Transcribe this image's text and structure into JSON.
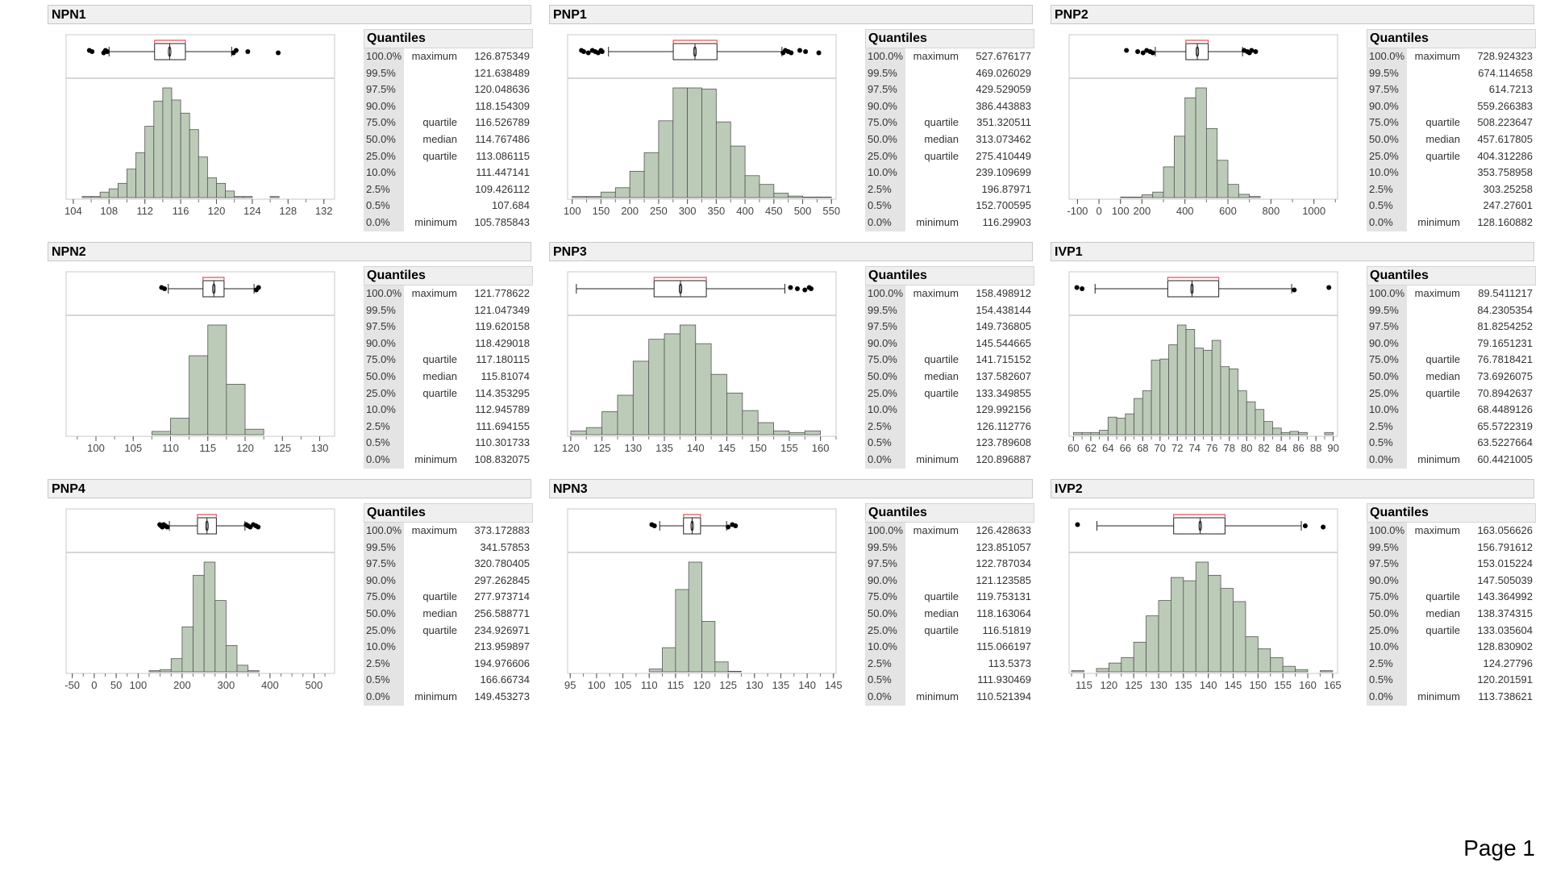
{
  "page_label": "Page 1",
  "quantiles_title": "Quantiles",
  "quantile_levels": [
    "100.0%",
    "99.5%",
    "97.5%",
    "90.0%",
    "75.0%",
    "50.0%",
    "25.0%",
    "10.0%",
    "2.5%",
    "0.5%",
    "0.0%"
  ],
  "quantile_labels": [
    "maximum",
    "",
    "",
    "",
    "quartile",
    "median",
    "quartile",
    "",
    "",
    "",
    "minimum"
  ],
  "colors": {
    "bar_fill": "#bccbb8",
    "bar_stroke": "#555555",
    "bracket": "#e8505b",
    "frame": "#c8c8c8"
  },
  "chart_data": [
    {
      "type": "bar",
      "title": "NPN1",
      "xlim": [
        103.2,
        133.2
      ],
      "ticks": [
        104,
        108,
        112,
        116,
        120,
        124,
        128,
        132
      ],
      "minor_tick_step": 2,
      "hist": {
        "bin_start": 105,
        "bin_width": 1,
        "heights": [
          1,
          1,
          5,
          8,
          13,
          26,
          41,
          65,
          88,
          100,
          89,
          77,
          62,
          37,
          18,
          13,
          6,
          1,
          1,
          0,
          0,
          1
        ]
      },
      "box": {
        "whisker_low": 108,
        "whisker_high": 121.7,
        "outliers": [
          105.8,
          106.1,
          107.4,
          107.6,
          107.8,
          121.9,
          122.2,
          123.5,
          126.9
        ]
      },
      "quantiles": [
        "126.875349",
        "121.638489",
        "120.048636",
        "118.154309",
        "116.526789",
        "114.767486",
        "113.086115",
        "111.447141",
        "109.426112",
        "107.684",
        "105.785843"
      ]
    },
    {
      "type": "bar",
      "title": "PNP1",
      "xlim": [
        92,
        558
      ],
      "ticks": [
        100,
        150,
        200,
        250,
        300,
        350,
        400,
        450,
        500,
        550
      ],
      "minor_tick_step": 25,
      "hist": {
        "bin_start": 100,
        "bin_width": 25,
        "heights": [
          1,
          1,
          5,
          9,
          24,
          41,
          70,
          100,
          100,
          99,
          69,
          47,
          20,
          12,
          4,
          1.4,
          0.5,
          0.5
        ]
      },
      "box": {
        "whisker_low": 163,
        "whisker_high": 464,
        "outliers": [
          116,
          120,
          128,
          135,
          140,
          145,
          150,
          152,
          466,
          470,
          475,
          480,
          495,
          505,
          528
        ]
      },
      "quantiles": [
        "527.676177",
        "469.026029",
        "429.529059",
        "386.443883",
        "351.320511",
        "313.073462",
        "275.410449",
        "239.109699",
        "196.87971",
        "152.700595",
        "116.29903"
      ]
    },
    {
      "type": "bar",
      "title": "PNP2",
      "xlim": [
        -139,
        1110
      ],
      "ticks": [
        -100,
        0,
        100,
        200,
        400,
        600,
        800,
        1000
      ],
      "minor_tick_step": 100,
      "hist": {
        "bin_start": 100,
        "bin_width": 50,
        "heights": [
          0.5,
          0.5,
          2.5,
          5,
          28,
          56,
          91,
          100,
          63,
          34,
          12,
          3,
          1
        ]
      },
      "box": {
        "whisker_low": 262,
        "whisker_high": 668,
        "outliers": [
          128,
          180,
          205,
          222,
          238,
          250,
          675,
          690,
          700,
          710,
          729
        ]
      },
      "quantiles": [
        "728.924323",
        "674.114658",
        "614.7213",
        "559.266383",
        "508.223647",
        "457.617805",
        "404.312286",
        "353.758958",
        "303.25258",
        "247.27601",
        "128.160882"
      ]
    },
    {
      "type": "bar",
      "title": "NPN2",
      "xlim": [
        96,
        132
      ],
      "ticks": [
        100,
        105,
        110,
        115,
        120,
        125,
        130
      ],
      "minor_tick_step": 2.5,
      "hist": {
        "bin_start": 107.5,
        "bin_width": 2.5,
        "heights": [
          3,
          15,
          72,
          100,
          46,
          5
        ]
      },
      "box": {
        "whisker_low": 109.7,
        "whisker_high": 121.2,
        "outliers": [
          108.8,
          109.2,
          121.5,
          121.8
        ]
      },
      "quantiles": [
        "121.778622",
        "121.047349",
        "119.620158",
        "118.429018",
        "117.180115",
        "115.81074",
        "114.353295",
        "112.945789",
        "111.694155",
        "110.301733",
        "108.832075"
      ]
    },
    {
      "type": "bar",
      "title": "PNP3",
      "xlim": [
        119.5,
        162.5
      ],
      "ticks": [
        120,
        125,
        130,
        135,
        140,
        145,
        150,
        155,
        160
      ],
      "minor_tick_step": 2.5,
      "hist": {
        "bin_start": 120,
        "bin_width": 2.5,
        "heights": [
          3.5,
          6.5,
          21,
          36,
          67,
          87,
          92,
          100,
          83,
          55,
          38,
          22,
          11,
          3.5,
          2,
          3.5
        ]
      },
      "box": {
        "whisker_low": 120.9,
        "whisker_high": 154.3,
        "outliers": [
          155.2,
          156.3,
          157.5,
          158.2,
          158.5
        ]
      },
      "quantiles": [
        "158.498912",
        "154.438144",
        "149.736805",
        "145.544665",
        "141.715152",
        "137.582607",
        "133.349855",
        "129.992156",
        "126.112776",
        "123.789608",
        "120.896887"
      ]
    },
    {
      "type": "bar",
      "title": "IVP1",
      "xlim": [
        59.5,
        90.5
      ],
      "ticks": [
        60,
        62,
        64,
        66,
        68,
        70,
        72,
        74,
        76,
        78,
        80,
        82,
        84,
        86,
        88,
        90
      ],
      "minor_tick_step": 1,
      "hist": {
        "bin_start": 60,
        "bin_width": 1,
        "heights": [
          2,
          2,
          2,
          4,
          16,
          15,
          19,
          33,
          40,
          68,
          69,
          82,
          100,
          96,
          79,
          77,
          86,
          62,
          60,
          40,
          30,
          23,
          12,
          6,
          2,
          3,
          2,
          0,
          0,
          2
        ]
      },
      "box": {
        "whisker_low": 62.5,
        "whisker_high": 85.2,
        "outliers": [
          60.4,
          61,
          85.5,
          89.5
        ]
      },
      "quantiles": [
        "89.5411217",
        "84.2305354",
        "81.8254252",
        "79.1651231",
        "76.7818421",
        "73.6926075",
        "70.8942637",
        "68.4489126",
        "65.5722319",
        "63.5227664",
        "60.4421005"
      ]
    },
    {
      "type": "bar",
      "title": "PNP4",
      "xlim": [
        -64,
        547
      ],
      "ticks": [
        -50,
        0,
        50,
        100,
        200,
        300,
        400,
        500
      ],
      "minor_tick_step": 25,
      "hist": {
        "bin_start": 125,
        "bin_width": 25,
        "heights": [
          1,
          2,
          12,
          41,
          88,
          100,
          65,
          24,
          6,
          1
        ]
      },
      "box": {
        "whisker_low": 171,
        "whisker_high": 343,
        "outliers": [
          149,
          152,
          155,
          158,
          162,
          166,
          346,
          350,
          355,
          362,
          368,
          373
        ]
      },
      "quantiles": [
        "373.172883",
        "341.57853",
        "320.780405",
        "297.262845",
        "277.973714",
        "256.588771",
        "234.926971",
        "213.959897",
        "194.976606",
        "166.66734",
        "149.453273"
      ]
    },
    {
      "type": "bar",
      "title": "NPN3",
      "xlim": [
        94.5,
        145.5
      ],
      "ticks": [
        95,
        100,
        105,
        110,
        115,
        120,
        125,
        130,
        135,
        140,
        145
      ],
      "minor_tick_step": 2.5,
      "hist": {
        "bin_start": 110,
        "bin_width": 2.5,
        "heights": [
          2.5,
          22,
          75,
          100,
          46,
          9,
          0.5
        ]
      },
      "box": {
        "whisker_low": 112,
        "whisker_high": 124.7,
        "outliers": [
          110.5,
          111,
          125,
          125.8,
          126.4
        ]
      },
      "quantiles": [
        "126.428633",
        "123.851057",
        "122.787034",
        "121.123585",
        "119.753131",
        "118.163064",
        "116.51819",
        "115.066197",
        "113.5373",
        "111.930469",
        "110.521394"
      ]
    },
    {
      "type": "bar",
      "title": "IVP2",
      "xlim": [
        112,
        166
      ],
      "ticks": [
        115,
        120,
        125,
        130,
        135,
        140,
        145,
        150,
        155,
        160,
        165
      ],
      "minor_tick_step": 2.5,
      "hist": {
        "bin_start": 112.5,
        "bin_width": 2.5,
        "heights": [
          1,
          0,
          3,
          8,
          13,
          27,
          51,
          65,
          86,
          83,
          100,
          88,
          76,
          64,
          32,
          21,
          13,
          5,
          2,
          0,
          1
        ]
      },
      "box": {
        "whisker_low": 117.6,
        "whisker_high": 158.7,
        "outliers": [
          113.7,
          159.5,
          163.1
        ]
      },
      "quantiles": [
        "163.056626",
        "156.791612",
        "153.015224",
        "147.505039",
        "143.364992",
        "138.374315",
        "133.035604",
        "128.830902",
        "124.27796",
        "120.201591",
        "113.738621"
      ]
    }
  ]
}
